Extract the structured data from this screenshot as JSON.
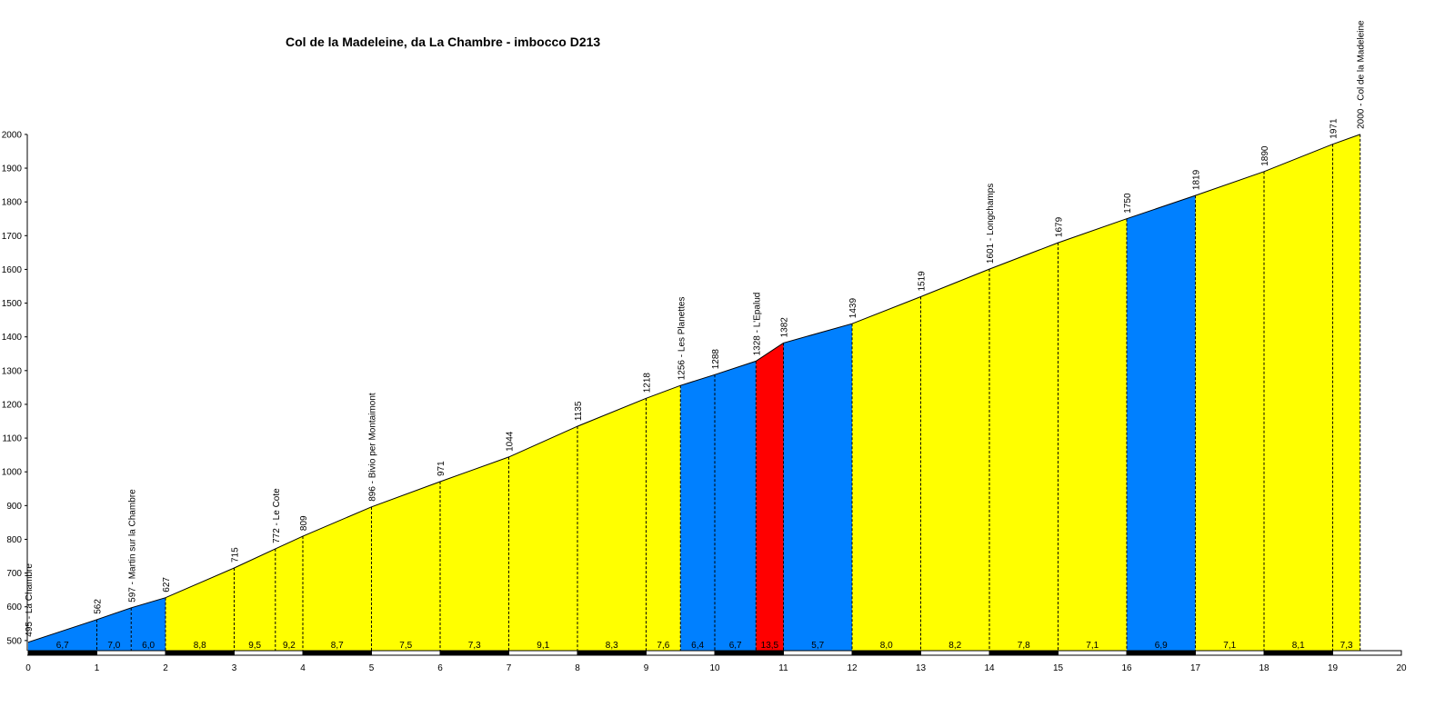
{
  "chart_data": {
    "type": "area",
    "title": "Col de la Madeleine, da La Chambre - imbocco D213",
    "xlabel": "",
    "ylabel": "",
    "xlim": [
      0,
      20
    ],
    "ylim": [
      470,
      2000
    ],
    "x_ticks": [
      0,
      1,
      2,
      3,
      4,
      5,
      6,
      7,
      8,
      9,
      10,
      11,
      12,
      13,
      14,
      15,
      16,
      17,
      18,
      19,
      20
    ],
    "y_ticks": [
      500,
      600,
      700,
      800,
      900,
      1000,
      1100,
      1200,
      1300,
      1400,
      1500,
      1600,
      1700,
      1800,
      1900,
      2000
    ],
    "points": [
      {
        "x": 0.0,
        "y": 495,
        "label": "495 - La Chambre"
      },
      {
        "x": 1.0,
        "y": 562,
        "label": "562"
      },
      {
        "x": 1.5,
        "y": 597,
        "label": "597 - Martin sur la Chambre"
      },
      {
        "x": 2.0,
        "y": 627,
        "label": "627"
      },
      {
        "x": 3.0,
        "y": 715,
        "label": "715"
      },
      {
        "x": 3.6,
        "y": 772,
        "label": "772 - Le Cote"
      },
      {
        "x": 4.0,
        "y": 809,
        "label": "809"
      },
      {
        "x": 5.0,
        "y": 896,
        "label": "896 - Bivio per Montaimont"
      },
      {
        "x": 6.0,
        "y": 971,
        "label": "971"
      },
      {
        "x": 7.0,
        "y": 1044,
        "label": "1044"
      },
      {
        "x": 8.0,
        "y": 1135,
        "label": "1135"
      },
      {
        "x": 9.0,
        "y": 1218,
        "label": "1218"
      },
      {
        "x": 9.5,
        "y": 1256,
        "label": "1256 - Les Planettes"
      },
      {
        "x": 10.0,
        "y": 1288,
        "label": "1288"
      },
      {
        "x": 10.6,
        "y": 1328,
        "label": "1328 - L'Epalud"
      },
      {
        "x": 11.0,
        "y": 1382,
        "label": "1382"
      },
      {
        "x": 12.0,
        "y": 1439,
        "label": "1439"
      },
      {
        "x": 13.0,
        "y": 1519,
        "label": "1519"
      },
      {
        "x": 14.0,
        "y": 1601,
        "label": "1601 - Longchamps"
      },
      {
        "x": 15.0,
        "y": 1679,
        "label": "1679"
      },
      {
        "x": 16.0,
        "y": 1750,
        "label": "1750"
      },
      {
        "x": 17.0,
        "y": 1819,
        "label": "1819"
      },
      {
        "x": 18.0,
        "y": 1890,
        "label": "1890"
      },
      {
        "x": 19.0,
        "y": 1971,
        "label": "1971"
      },
      {
        "x": 19.4,
        "y": 2000,
        "label": "2000 - Col de la Madeleine"
      }
    ],
    "segments": [
      {
        "from": 0.0,
        "to": 1.0,
        "gradient": "6,7",
        "color": "#0080ff"
      },
      {
        "from": 1.0,
        "to": 1.5,
        "gradient": "7,0",
        "color": "#0080ff"
      },
      {
        "from": 1.5,
        "to": 2.0,
        "gradient": "6,0",
        "color": "#0080ff"
      },
      {
        "from": 2.0,
        "to": 3.0,
        "gradient": "8,8",
        "color": "#ffff00"
      },
      {
        "from": 3.0,
        "to": 3.6,
        "gradient": "9,5",
        "color": "#ffff00"
      },
      {
        "from": 3.6,
        "to": 4.0,
        "gradient": "9,2",
        "color": "#ffff00"
      },
      {
        "from": 4.0,
        "to": 5.0,
        "gradient": "8,7",
        "color": "#ffff00"
      },
      {
        "from": 5.0,
        "to": 6.0,
        "gradient": "7,5",
        "color": "#ffff00"
      },
      {
        "from": 6.0,
        "to": 7.0,
        "gradient": "7,3",
        "color": "#ffff00"
      },
      {
        "from": 7.0,
        "to": 8.0,
        "gradient": "9,1",
        "color": "#ffff00"
      },
      {
        "from": 8.0,
        "to": 9.0,
        "gradient": "8,3",
        "color": "#ffff00"
      },
      {
        "from": 9.0,
        "to": 9.5,
        "gradient": "7,6",
        "color": "#ffff00"
      },
      {
        "from": 9.5,
        "to": 10.0,
        "gradient": "6,4",
        "color": "#0080ff"
      },
      {
        "from": 10.0,
        "to": 10.6,
        "gradient": "6,7",
        "color": "#0080ff"
      },
      {
        "from": 10.6,
        "to": 11.0,
        "gradient": "13,5",
        "color": "#ff0000"
      },
      {
        "from": 11.0,
        "to": 12.0,
        "gradient": "5,7",
        "color": "#0080ff"
      },
      {
        "from": 12.0,
        "to": 13.0,
        "gradient": "8,0",
        "color": "#ffff00"
      },
      {
        "from": 13.0,
        "to": 14.0,
        "gradient": "8,2",
        "color": "#ffff00"
      },
      {
        "from": 14.0,
        "to": 15.0,
        "gradient": "7,8",
        "color": "#ffff00"
      },
      {
        "from": 15.0,
        "to": 16.0,
        "gradient": "7,1",
        "color": "#ffff00"
      },
      {
        "from": 16.0,
        "to": 17.0,
        "gradient": "6,9",
        "color": "#0080ff"
      },
      {
        "from": 17.0,
        "to": 18.0,
        "gradient": "7,1",
        "color": "#ffff00"
      },
      {
        "from": 18.0,
        "to": 19.0,
        "gradient": "8,1",
        "color": "#ffff00"
      },
      {
        "from": 19.0,
        "to": 19.4,
        "gradient": "7,3",
        "color": "#ffff00"
      }
    ],
    "grid": false,
    "legend": "none"
  }
}
